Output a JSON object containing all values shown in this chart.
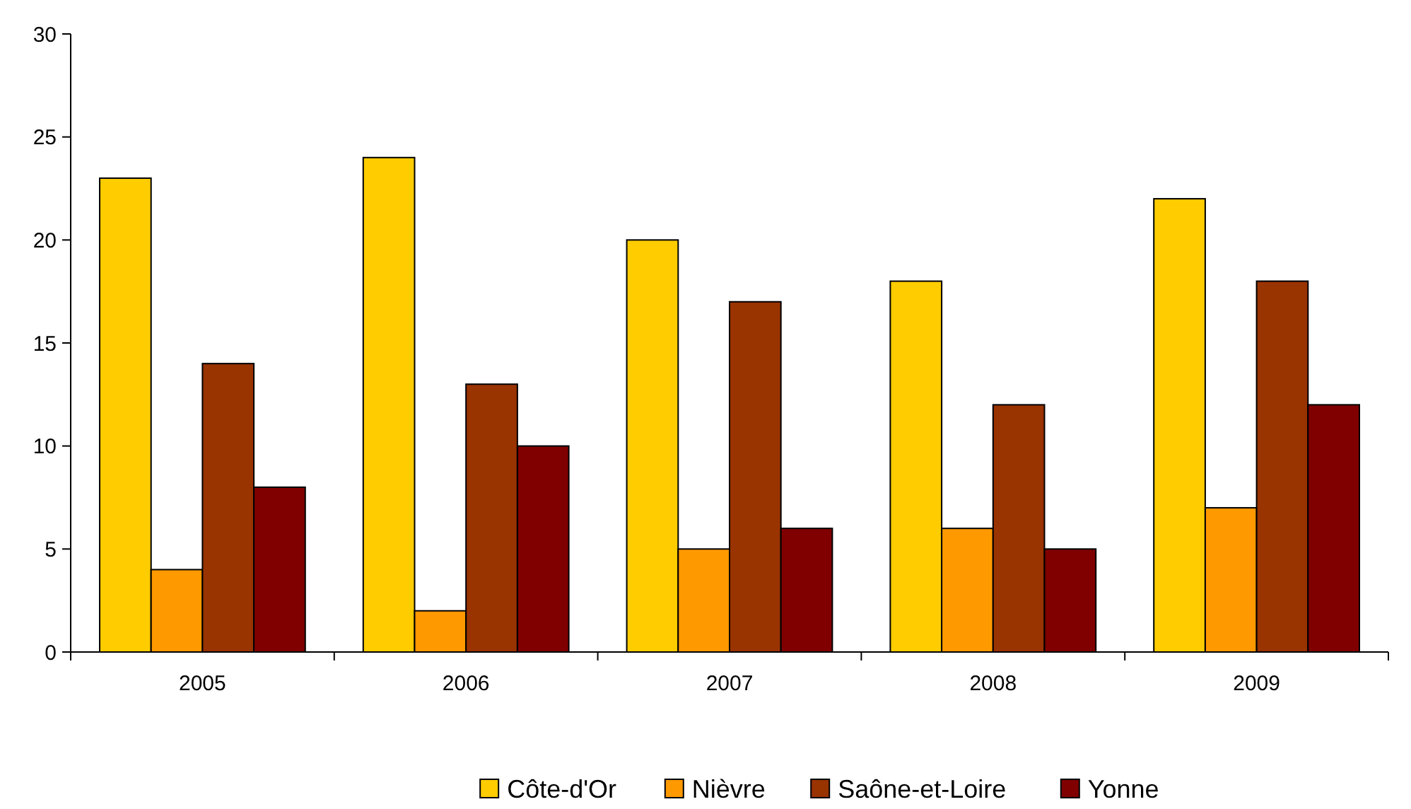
{
  "chart_data": {
    "type": "bar",
    "categories": [
      "2005",
      "2006",
      "2007",
      "2008",
      "2009"
    ],
    "series": [
      {
        "name": "Côte-d'Or",
        "color": "#ffcc00",
        "values": [
          23,
          24,
          20,
          18,
          22
        ]
      },
      {
        "name": "Nièvre",
        "color": "#ff9900",
        "values": [
          4,
          2,
          5,
          6,
          7
        ]
      },
      {
        "name": "Saône-et-Loire",
        "color": "#993300",
        "values": [
          14,
          13,
          17,
          12,
          18
        ]
      },
      {
        "name": "Yonne",
        "color": "#800000",
        "values": [
          8,
          10,
          6,
          5,
          12
        ]
      }
    ],
    "ylim": [
      0,
      30
    ],
    "yticks": [
      0,
      5,
      10,
      15,
      20,
      25,
      30
    ],
    "grid": false,
    "legend": "bottom"
  }
}
